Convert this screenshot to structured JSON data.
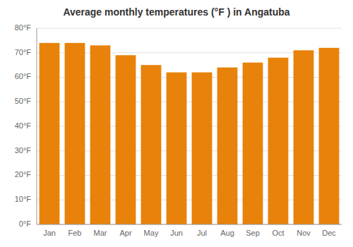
{
  "chart_data": {
    "type": "bar",
    "title": "Average monthly temperatures (°F ) in Angatuba",
    "categories": [
      "Jan",
      "Feb",
      "Mar",
      "Apr",
      "May",
      "Jun",
      "Jul",
      "Aug",
      "Sep",
      "Oct",
      "Nov",
      "Dec"
    ],
    "values": [
      74,
      74,
      73,
      69,
      65,
      62,
      62,
      64,
      66,
      68,
      71,
      72
    ],
    "color": "#E8820A",
    "ylim": [
      0,
      80
    ],
    "yticks": [
      {
        "value": 0,
        "label": "0°F"
      },
      {
        "value": 10,
        "label": "10°F"
      },
      {
        "value": 20,
        "label": "20°F"
      },
      {
        "value": 30,
        "label": "30°F"
      },
      {
        "value": 40,
        "label": "40°F"
      },
      {
        "value": 50,
        "label": "50°F"
      },
      {
        "value": 60,
        "label": "60°F"
      },
      {
        "value": 70,
        "label": "70°F"
      },
      {
        "value": 80,
        "label": "80°F"
      }
    ],
    "grid": true
  }
}
